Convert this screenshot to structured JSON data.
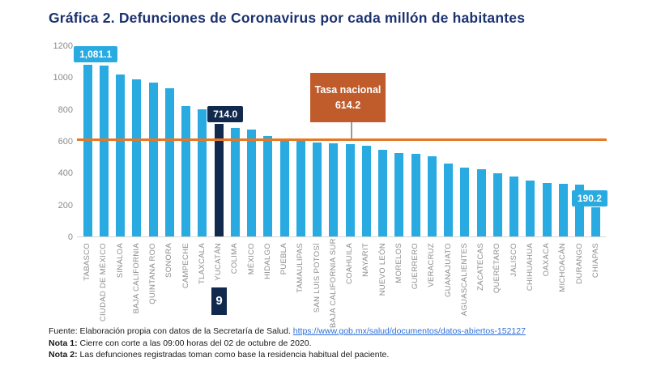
{
  "title": "Gráfica 2. Defunciones de Coronavirus por cada millón de habitantes",
  "colors": {
    "bar_blue": "#29abe2",
    "navy": "#12294e",
    "title_navy": "#1c3270",
    "ref_line_orange": "#e87722",
    "callout_rust": "#c05c2c",
    "axis_gray": "#8e8e8e",
    "link_blue": "#2e6fd9"
  },
  "chart_data": {
    "type": "bar",
    "title": "Gráfica 2. Defunciones de Coronavirus por cada millón de habitantes",
    "xlabel": "",
    "ylabel": "",
    "ylim": [
      0,
      1200
    ],
    "yticks": [
      0,
      200,
      400,
      600,
      800,
      1000,
      1200
    ],
    "grid": false,
    "legend": "none",
    "categories": [
      "TABASCO",
      "CIUDAD DE MÉXICO",
      "SINALOA",
      "BAJA CALIFORNIA",
      "QUINTANA ROO",
      "SONORA",
      "CAMPECHE",
      "TLAXCALA",
      "YUCATÁN",
      "COLIMA",
      "MÉXICO",
      "HIDALGO",
      "PUEBLA",
      "TAMAULIPAS",
      "SAN LUIS POTOSÍ",
      "BAJA CALIFORNIA SUR",
      "COAHUILA",
      "NAYARIT",
      "NUEVO LEÓN",
      "MORELOS",
      "GUERRERO",
      "VERACRUZ",
      "GUANAJUATO",
      "AGUASCALIENTES",
      "ZACATECAS",
      "QUERÉTARO",
      "JALISCO",
      "CHIHUAHUA",
      "OAXACA",
      "MICHOACÁN",
      "DURANGO",
      "CHIAPAS"
    ],
    "values": [
      1081.1,
      1079,
      1021,
      991,
      970,
      935,
      822,
      801,
      714.0,
      688,
      678,
      637,
      616,
      610,
      593,
      590,
      586,
      574,
      549,
      527,
      522,
      510,
      464,
      435,
      427,
      404,
      383,
      356,
      340,
      338,
      331,
      190.2
    ],
    "highlight_index": 8,
    "highlight_rank_label": "9",
    "value_labels": [
      {
        "index": 0,
        "text": "1,081.1",
        "style": "blue"
      },
      {
        "index": 8,
        "text": "714.0",
        "style": "navy"
      },
      {
        "index": 31,
        "text": "190.2",
        "style": "blue"
      }
    ],
    "reference_line": {
      "value": 614.2,
      "label": "Tasa nacional",
      "value_text": "614.2"
    }
  },
  "footer": {
    "fuente_prefix": "Fuente: Elaboración propia con datos de la Secretaría de Salud. ",
    "fuente_link": "https://www.gob.mx/salud/documentos/datos-abiertos-152127",
    "nota1_label": "Nota 1:",
    "nota1_text": " Cierre con corte a las 09:00 horas del 02 de octubre de 2020.",
    "nota2_label": "Nota 2:",
    "nota2_text": " Las defunciones registradas toman como base la residencia habitual del paciente."
  }
}
